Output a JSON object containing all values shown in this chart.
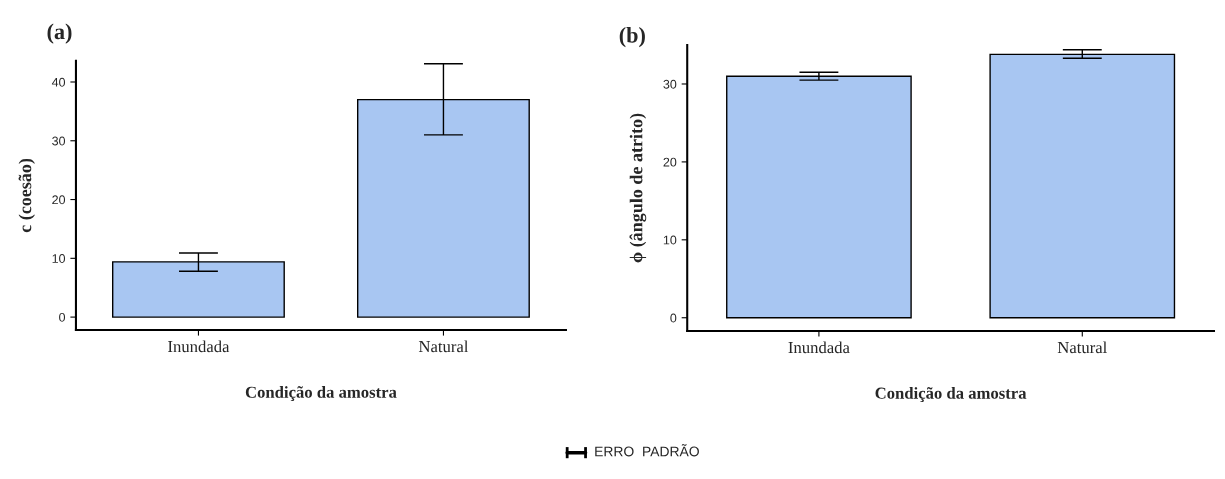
{
  "chart_data": [
    {
      "type": "bar",
      "title": "(a)",
      "xlabel": "Condição da amostra",
      "ylabel": "c (coesão)",
      "categories": [
        "Inundada",
        "Natural"
      ],
      "values": [
        9.4,
        37.0
      ],
      "errors": [
        [
          7.8,
          10.9
        ],
        [
          31.0,
          43.1
        ]
      ],
      "color": "#a8c6f2",
      "ylim": [
        -2.2,
        43.6
      ],
      "yticks": [
        0,
        10,
        20,
        30,
        40
      ],
      "grid": false,
      "legend": false
    },
    {
      "type": "bar",
      "title": "(b)",
      "xlabel": "Condição da amostra",
      "ylabel": "ϕ (ângulo de atrito)",
      "categories": [
        "Inundada",
        "Natural"
      ],
      "values": [
        31.0,
        33.8
      ],
      "errors": [
        [
          30.5,
          31.5
        ],
        [
          33.3,
          34.4
        ]
      ],
      "color": "#a8c6f2",
      "ylim": [
        -1.7,
        35
      ],
      "yticks": [
        0,
        10,
        20,
        30
      ],
      "grid": false,
      "legend": false,
      "annotations": [
        "ERRO  PADRÃO"
      ]
    }
  ]
}
